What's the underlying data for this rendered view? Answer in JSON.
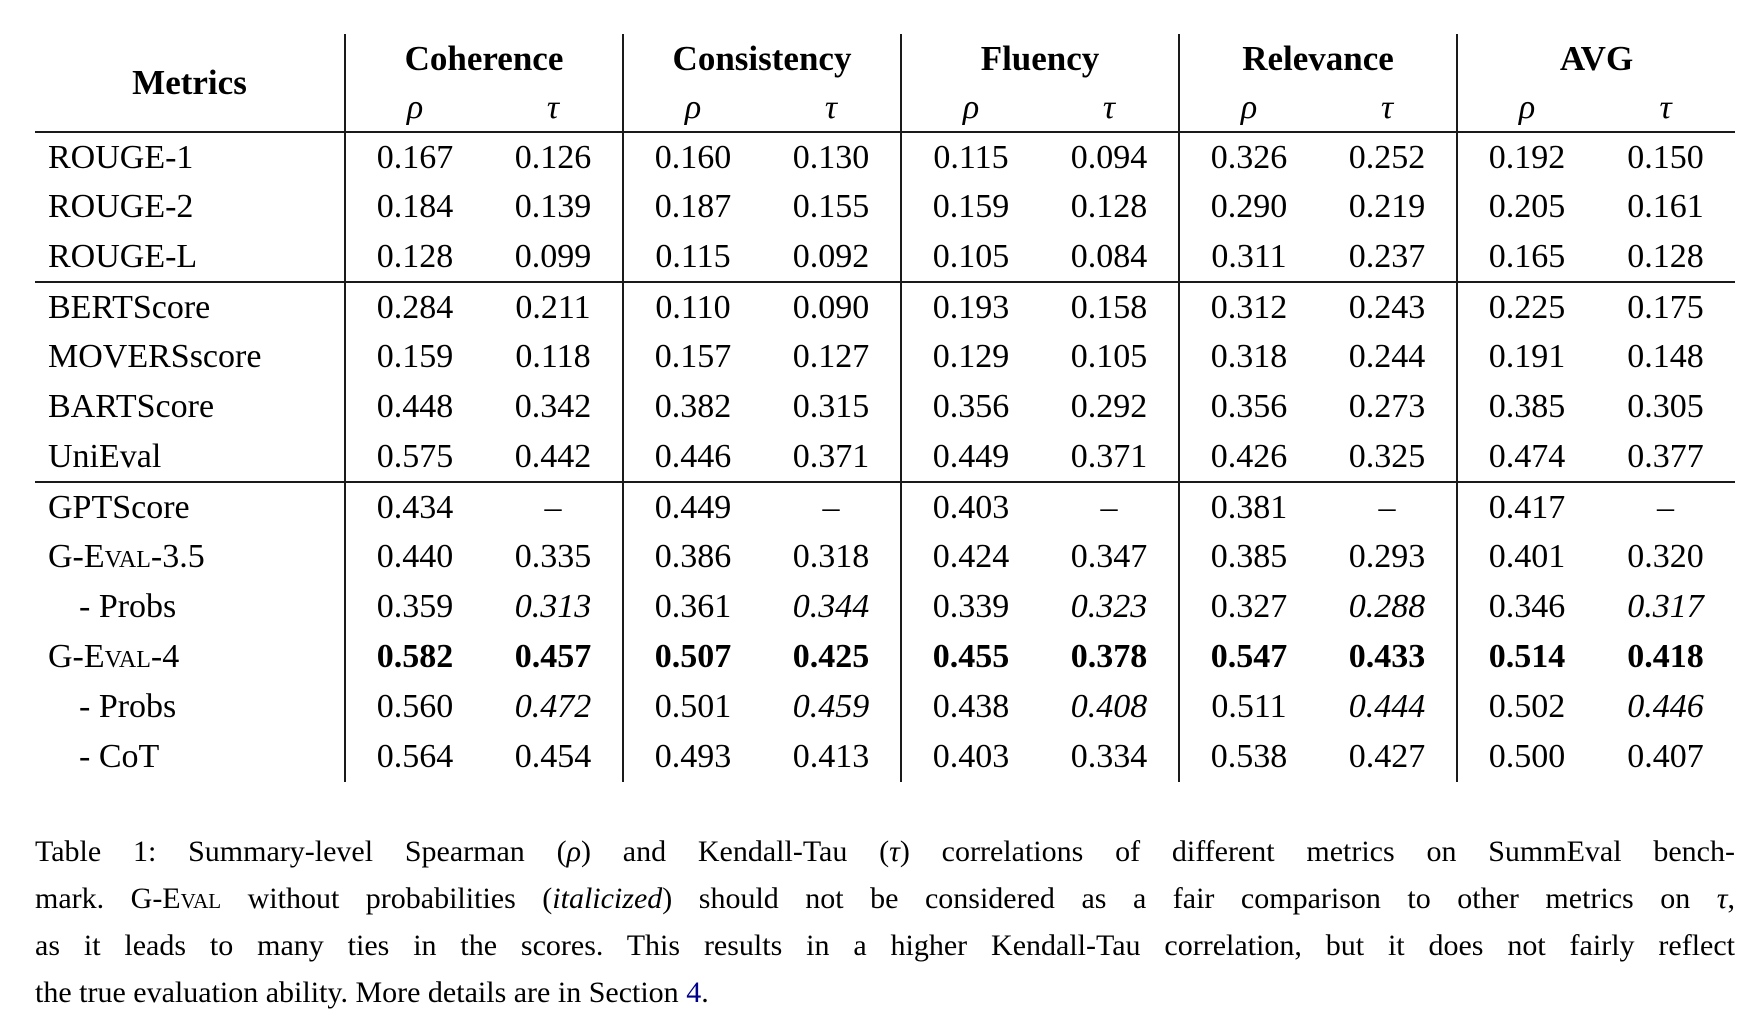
{
  "table": {
    "header": {
      "metrics": "Metrics",
      "groups": [
        "Coherence",
        "Consistency",
        "Fluency",
        "Relevance",
        "AVG"
      ],
      "rho": "ρ",
      "tau": "τ"
    },
    "rows": [
      {
        "label": "ROUGE-1",
        "cells": [
          {
            "v": "0.167",
            "s": "n"
          },
          {
            "v": "0.126",
            "s": "n"
          },
          {
            "v": "0.160",
            "s": "n"
          },
          {
            "v": "0.130",
            "s": "n"
          },
          {
            "v": "0.115",
            "s": "n"
          },
          {
            "v": "0.094",
            "s": "n"
          },
          {
            "v": "0.326",
            "s": "n"
          },
          {
            "v": "0.252",
            "s": "n"
          },
          {
            "v": "0.192",
            "s": "n"
          },
          {
            "v": "0.150",
            "s": "n"
          }
        ]
      },
      {
        "label": "ROUGE-2",
        "cells": [
          {
            "v": "0.184",
            "s": "n"
          },
          {
            "v": "0.139",
            "s": "n"
          },
          {
            "v": "0.187",
            "s": "n"
          },
          {
            "v": "0.155",
            "s": "n"
          },
          {
            "v": "0.159",
            "s": "n"
          },
          {
            "v": "0.128",
            "s": "n"
          },
          {
            "v": "0.290",
            "s": "n"
          },
          {
            "v": "0.219",
            "s": "n"
          },
          {
            "v": "0.205",
            "s": "n"
          },
          {
            "v": "0.161",
            "s": "n"
          }
        ]
      },
      {
        "label": "ROUGE-L",
        "cells": [
          {
            "v": "0.128",
            "s": "n"
          },
          {
            "v": "0.099",
            "s": "n"
          },
          {
            "v": "0.115",
            "s": "n"
          },
          {
            "v": "0.092",
            "s": "n"
          },
          {
            "v": "0.105",
            "s": "n"
          },
          {
            "v": "0.084",
            "s": "n"
          },
          {
            "v": "0.311",
            "s": "n"
          },
          {
            "v": "0.237",
            "s": "n"
          },
          {
            "v": "0.165",
            "s": "n"
          },
          {
            "v": "0.128",
            "s": "n"
          }
        ]
      },
      {
        "label": "BERTScore",
        "rule_above": true,
        "cells": [
          {
            "v": "0.284",
            "s": "n"
          },
          {
            "v": "0.211",
            "s": "n"
          },
          {
            "v": "0.110",
            "s": "n"
          },
          {
            "v": "0.090",
            "s": "n"
          },
          {
            "v": "0.193",
            "s": "n"
          },
          {
            "v": "0.158",
            "s": "n"
          },
          {
            "v": "0.312",
            "s": "n"
          },
          {
            "v": "0.243",
            "s": "n"
          },
          {
            "v": "0.225",
            "s": "n"
          },
          {
            "v": "0.175",
            "s": "n"
          }
        ]
      },
      {
        "label": "MOVERSscore",
        "cells": [
          {
            "v": "0.159",
            "s": "n"
          },
          {
            "v": "0.118",
            "s": "n"
          },
          {
            "v": "0.157",
            "s": "n"
          },
          {
            "v": "0.127",
            "s": "n"
          },
          {
            "v": "0.129",
            "s": "n"
          },
          {
            "v": "0.105",
            "s": "n"
          },
          {
            "v": "0.318",
            "s": "n"
          },
          {
            "v": "0.244",
            "s": "n"
          },
          {
            "v": "0.191",
            "s": "n"
          },
          {
            "v": "0.148",
            "s": "n"
          }
        ]
      },
      {
        "label": "BARTScore",
        "cells": [
          {
            "v": "0.448",
            "s": "n"
          },
          {
            "v": "0.342",
            "s": "n"
          },
          {
            "v": "0.382",
            "s": "n"
          },
          {
            "v": "0.315",
            "s": "n"
          },
          {
            "v": "0.356",
            "s": "n"
          },
          {
            "v": "0.292",
            "s": "n"
          },
          {
            "v": "0.356",
            "s": "n"
          },
          {
            "v": "0.273",
            "s": "n"
          },
          {
            "v": "0.385",
            "s": "n"
          },
          {
            "v": "0.305",
            "s": "n"
          }
        ]
      },
      {
        "label": "UniEval",
        "cells": [
          {
            "v": "0.575",
            "s": "n"
          },
          {
            "v": "0.442",
            "s": "n"
          },
          {
            "v": "0.446",
            "s": "n"
          },
          {
            "v": "0.371",
            "s": "n"
          },
          {
            "v": "0.449",
            "s": "n"
          },
          {
            "v": "0.371",
            "s": "n"
          },
          {
            "v": "0.426",
            "s": "n"
          },
          {
            "v": "0.325",
            "s": "n"
          },
          {
            "v": "0.474",
            "s": "n"
          },
          {
            "v": "0.377",
            "s": "n"
          }
        ]
      },
      {
        "label": "GPTScore",
        "rule_above": true,
        "cells": [
          {
            "v": "0.434",
            "s": "n"
          },
          {
            "v": "–",
            "s": "n"
          },
          {
            "v": "0.449",
            "s": "n"
          },
          {
            "v": "–",
            "s": "n"
          },
          {
            "v": "0.403",
            "s": "n"
          },
          {
            "v": "–",
            "s": "n"
          },
          {
            "v": "0.381",
            "s": "n"
          },
          {
            "v": "–",
            "s": "n"
          },
          {
            "v": "0.417",
            "s": "n"
          },
          {
            "v": "–",
            "s": "n"
          }
        ]
      },
      {
        "label": "G-Eval-3.5",
        "sc": true,
        "cells": [
          {
            "v": "0.440",
            "s": "n"
          },
          {
            "v": "0.335",
            "s": "n"
          },
          {
            "v": "0.386",
            "s": "n"
          },
          {
            "v": "0.318",
            "s": "n"
          },
          {
            "v": "0.424",
            "s": "n"
          },
          {
            "v": "0.347",
            "s": "n"
          },
          {
            "v": "0.385",
            "s": "n"
          },
          {
            "v": "0.293",
            "s": "n"
          },
          {
            "v": "0.401",
            "s": "n"
          },
          {
            "v": "0.320",
            "s": "n"
          }
        ]
      },
      {
        "label": "- Probs",
        "indent": true,
        "cells": [
          {
            "v": "0.359",
            "s": "n"
          },
          {
            "v": "0.313",
            "s": "i"
          },
          {
            "v": "0.361",
            "s": "n"
          },
          {
            "v": "0.344",
            "s": "i"
          },
          {
            "v": "0.339",
            "s": "n"
          },
          {
            "v": "0.323",
            "s": "i"
          },
          {
            "v": "0.327",
            "s": "n"
          },
          {
            "v": "0.288",
            "s": "i"
          },
          {
            "v": "0.346",
            "s": "n"
          },
          {
            "v": "0.317",
            "s": "i"
          }
        ]
      },
      {
        "label": "G-Eval-4",
        "sc": true,
        "cells": [
          {
            "v": "0.582",
            "s": "b"
          },
          {
            "v": "0.457",
            "s": "b"
          },
          {
            "v": "0.507",
            "s": "b"
          },
          {
            "v": "0.425",
            "s": "b"
          },
          {
            "v": "0.455",
            "s": "b"
          },
          {
            "v": "0.378",
            "s": "b"
          },
          {
            "v": "0.547",
            "s": "b"
          },
          {
            "v": "0.433",
            "s": "b"
          },
          {
            "v": "0.514",
            "s": "b"
          },
          {
            "v": "0.418",
            "s": "b"
          }
        ]
      },
      {
        "label": "- Probs",
        "indent": true,
        "cells": [
          {
            "v": "0.560",
            "s": "n"
          },
          {
            "v": "0.472",
            "s": "i"
          },
          {
            "v": "0.501",
            "s": "n"
          },
          {
            "v": "0.459",
            "s": "i"
          },
          {
            "v": "0.438",
            "s": "n"
          },
          {
            "v": "0.408",
            "s": "i"
          },
          {
            "v": "0.511",
            "s": "n"
          },
          {
            "v": "0.444",
            "s": "i"
          },
          {
            "v": "0.502",
            "s": "n"
          },
          {
            "v": "0.446",
            "s": "i"
          }
        ]
      },
      {
        "label": "- CoT",
        "indent": true,
        "cells": [
          {
            "v": "0.564",
            "s": "n"
          },
          {
            "v": "0.454",
            "s": "n"
          },
          {
            "v": "0.493",
            "s": "n"
          },
          {
            "v": "0.413",
            "s": "n"
          },
          {
            "v": "0.403",
            "s": "n"
          },
          {
            "v": "0.334",
            "s": "n"
          },
          {
            "v": "0.538",
            "s": "n"
          },
          {
            "v": "0.427",
            "s": "n"
          },
          {
            "v": "0.500",
            "s": "n"
          },
          {
            "v": "0.407",
            "s": "n"
          }
        ]
      }
    ]
  },
  "caption": {
    "lines": [
      [
        {
          "t": "Table 1: Summary-level Spearman ("
        },
        {
          "t": "ρ",
          "c": "mi"
        },
        {
          "t": ") and Kendall-Tau ("
        },
        {
          "t": "τ",
          "c": "mi"
        },
        {
          "t": ") correlations of different metrics on SummEval bench-"
        }
      ],
      [
        {
          "t": "mark. "
        },
        {
          "t": "G-Eval",
          "c": "sc"
        },
        {
          "t": " without probabilities ("
        },
        {
          "t": "italicized",
          "c": "i"
        },
        {
          "t": ") should not be considered as a fair comparison to other metrics on "
        },
        {
          "t": "τ",
          "c": "mi"
        },
        {
          "t": ","
        }
      ],
      [
        {
          "t": "as it leads to many ties in the scores. This results in a higher Kendall-Tau correlation, but it does not fairly reflect"
        }
      ],
      [
        {
          "t": "the true evaluation ability. More details are in Section "
        },
        {
          "t": "4",
          "c": "link"
        },
        {
          "t": "."
        }
      ]
    ]
  }
}
